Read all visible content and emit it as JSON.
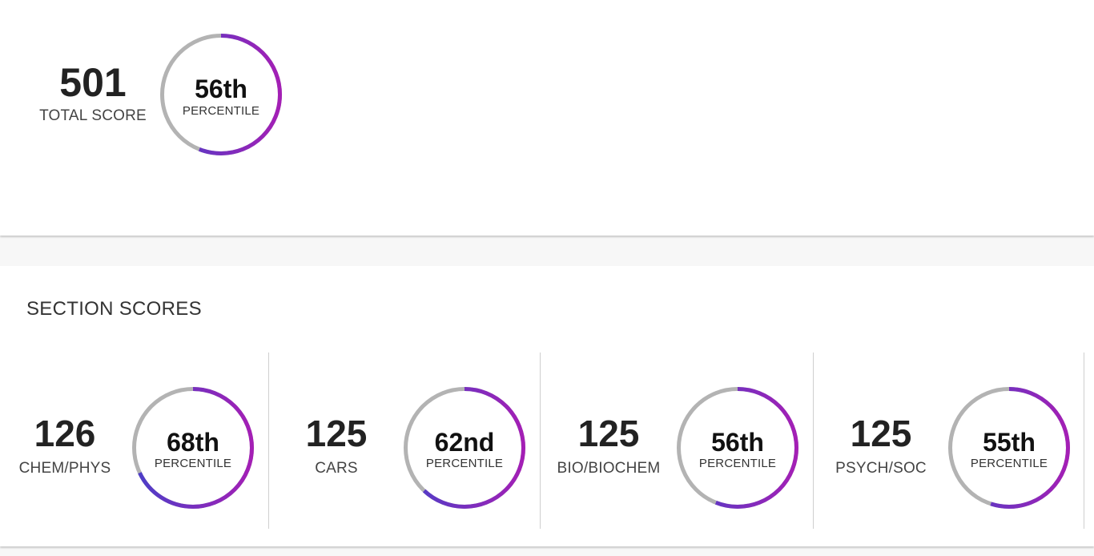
{
  "total": {
    "score": "501",
    "label": "TOTAL SCORE",
    "percentile": "56th",
    "percentile_label": "PERCENTILE",
    "percentile_value": 56
  },
  "sections_title": "SECTION SCORES",
  "sections": [
    {
      "score": "126",
      "label": "CHEM/PHYS",
      "percentile": "68th",
      "percentile_label": "PERCENTILE",
      "percentile_value": 68
    },
    {
      "score": "125",
      "label": "CARS",
      "percentile": "62nd",
      "percentile_label": "PERCENTILE",
      "percentile_value": 62
    },
    {
      "score": "125",
      "label": "BIO/BIOCHEM",
      "percentile": "56th",
      "percentile_label": "PERCENTILE",
      "percentile_value": 56
    },
    {
      "score": "125",
      "label": "PSYCH/SOC",
      "percentile": "55th",
      "percentile_label": "PERCENTILE",
      "percentile_value": 55
    }
  ],
  "colors": {
    "ring_track": "#b3b3b3",
    "ring_start": "#4a3fc8",
    "ring_end": "#a41fb5"
  }
}
